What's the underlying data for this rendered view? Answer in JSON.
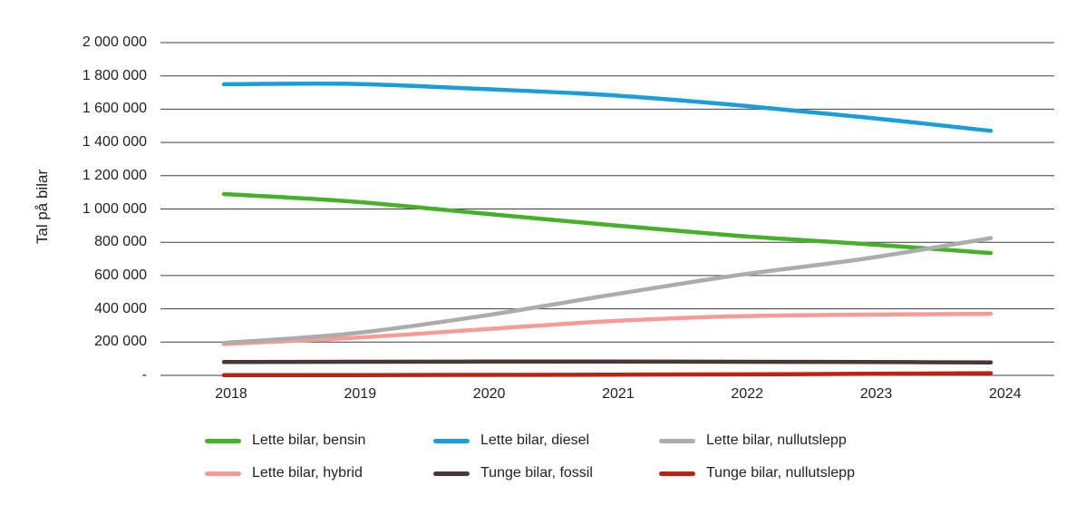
{
  "chart_data": {
    "type": "line",
    "title": "",
    "ylabel": "Tal på bilar",
    "xlabel": "",
    "x": [
      "2018",
      "2019",
      "2020",
      "2021",
      "2022",
      "2023",
      "2024"
    ],
    "ylim": [
      0,
      2000000
    ],
    "grid": "horizontal",
    "legend_position": "bottom",
    "y_ticks": [
      {
        "value": 0,
        "label": "-"
      },
      {
        "value": 200000,
        "label": "200 000"
      },
      {
        "value": 400000,
        "label": "400 000"
      },
      {
        "value": 600000,
        "label": "600 000"
      },
      {
        "value": 800000,
        "label": "800 000"
      },
      {
        "value": 1000000,
        "label": "1 000 000"
      },
      {
        "value": 1200000,
        "label": "1 200 000"
      },
      {
        "value": 1400000,
        "label": "1 400 000"
      },
      {
        "value": 1600000,
        "label": "1 600 000"
      },
      {
        "value": 1800000,
        "label": "1 800 000"
      },
      {
        "value": 2000000,
        "label": "2 000 000"
      }
    ],
    "series": [
      {
        "name": "Lette bilar, bensin",
        "color": "#45B02A",
        "values": [
          1090000,
          1045000,
          975000,
          905000,
          840000,
          790000,
          735000
        ]
      },
      {
        "name": "Lette bilar, diesel",
        "color": "#1B9DD9",
        "values": [
          1750000,
          1752000,
          1722000,
          1685000,
          1625000,
          1552000,
          1470000
        ]
      },
      {
        "name": "Lette bilar, nullutslepp",
        "color": "#ACACAC",
        "values": [
          195000,
          252000,
          355000,
          480000,
          600000,
          700000,
          825000
        ]
      },
      {
        "name": "Lette bilar, hybrid",
        "color": "#F79B99",
        "values": [
          188000,
          225000,
          275000,
          325000,
          355000,
          365000,
          370000
        ]
      },
      {
        "name": "Tunge bilar, fossil",
        "color": "#473834",
        "values": [
          80000,
          82000,
          83000,
          83000,
          82000,
          80000,
          78000
        ]
      },
      {
        "name": "Tunge bilar, nullutslepp",
        "color": "#BC2312",
        "values": [
          1000,
          1500,
          2500,
          4000,
          6000,
          9000,
          13000
        ]
      }
    ]
  },
  "colors": {
    "background": "#FFFFFF",
    "gridline": "#3D3D3D",
    "text": "#231F20"
  }
}
